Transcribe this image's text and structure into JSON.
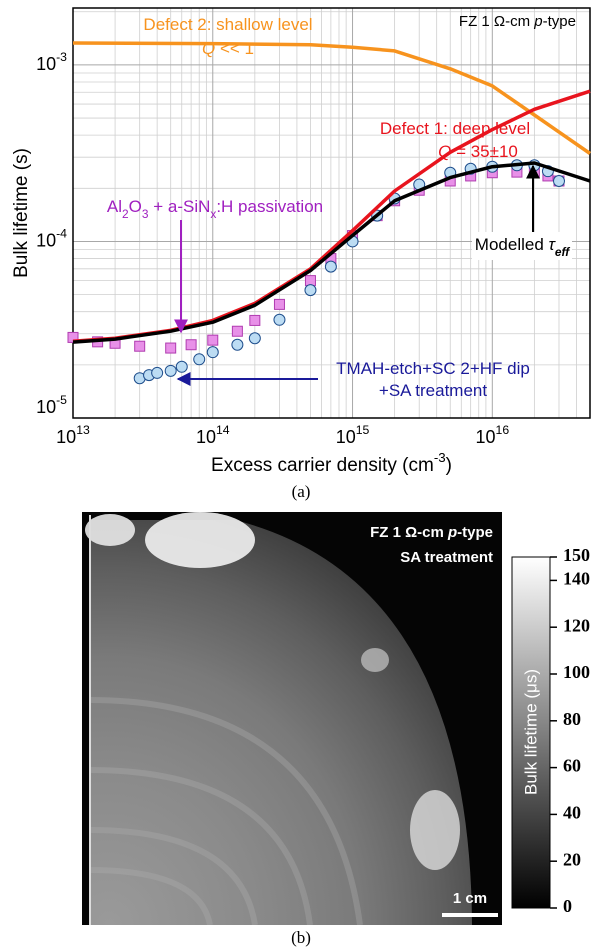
{
  "chart_data": [
    {
      "type": "line",
      "xlabel": [
        [
          "Excess carrier density (cm",
          null
        ],
        [
          "-3",
          "sup"
        ],
        [
          ")",
          null
        ]
      ],
      "ylabel": [
        [
          "Bulk lifetime (s)",
          null
        ]
      ],
      "panel_label": "(a)",
      "xlog": true,
      "ylog": true,
      "grid": true,
      "xlim": [
        10000000000000.0,
        5e+16
      ],
      "ylim": [
        1e-05,
        0.0021
      ],
      "xticks": [
        {
          "value": 10000000000000.0,
          "label": "10",
          "exponent": "13"
        },
        {
          "value": 100000000000000.0,
          "label": "10",
          "exponent": "14"
        },
        {
          "value": 1000000000000000.0,
          "label": "10",
          "exponent": "15"
        },
        {
          "value": 1e+16,
          "label": "10",
          "exponent": "16"
        }
      ],
      "yticks": [
        {
          "value": 1e-05,
          "label": "10",
          "exponent": "-5"
        },
        {
          "value": 0.0001,
          "label": "10",
          "exponent": "-4"
        },
        {
          "value": 0.001,
          "label": "10",
          "exponent": "-3"
        }
      ],
      "xminor": [
        20000000000000.0,
        30000000000000.0,
        40000000000000.0,
        50000000000000.0,
        60000000000000.0,
        70000000000000.0,
        80000000000000.0,
        90000000000000.0,
        200000000000000.0,
        300000000000000.0,
        400000000000000.0,
        500000000000000.0,
        600000000000000.0,
        700000000000000.0,
        800000000000000.0,
        900000000000000.0,
        2000000000000000.0,
        3000000000000000.0,
        4000000000000000.0,
        5000000000000000.0,
        6000000000000000.0,
        7000000000000000.0,
        8000000000000000.0,
        9000000000000000.0,
        2e+16,
        3e+16,
        4e+16,
        5e+16
      ],
      "yminor": [
        2e-05,
        3e-05,
        4e-05,
        5e-05,
        6e-05,
        7e-05,
        8e-05,
        9e-05,
        0.0002,
        0.0003,
        0.0004,
        0.0005,
        0.0006,
        0.0007,
        0.0008,
        0.0009,
        0.002
      ],
      "series": [
        {
          "name": "Al2O3 + a-SiNx:H passivation",
          "marker": "square",
          "color": "#b03cb0",
          "fill": "#e890e8",
          "x": [
            10000000000000.0,
            15000000000000.0,
            20000000000000.0,
            30000000000000.0,
            50000000000000.0,
            70000000000000.0,
            100000000000000.0,
            150000000000000.0,
            200000000000000.0,
            300000000000000.0,
            500000000000000.0,
            700000000000000.0,
            1000000000000000.0,
            1500000000000000.0,
            2000000000000000.0,
            3000000000000000.0,
            5000000000000000.0,
            7000000000000000.0,
            1e+16,
            1.5e+16,
            2e+16,
            2.5e+16,
            3e+16
          ],
          "values": [
            2.86e-05,
            2.7e-05,
            2.65e-05,
            2.55e-05,
            2.49e-05,
            2.6e-05,
            2.76e-05,
            3.1e-05,
            3.57e-05,
            4.4e-05,
            6e-05,
            8e-05,
            0.000108,
            0.00014,
            0.00017,
            0.000195,
            0.00022,
            0.000235,
            0.000245,
            0.000247,
            0.000245,
            0.000235,
            0.00022
          ]
        },
        {
          "name": "TMAH-etch+SC 2+HF dip +SA treatment",
          "marker": "circle",
          "color": "#1f4e8c",
          "fill": "#bcdcf3",
          "x": [
            30000000000000.0,
            35000000000000.0,
            40000000000000.0,
            50000000000000.0,
            60000000000000.0,
            80000000000000.0,
            100000000000000.0,
            150000000000000.0,
            200000000000000.0,
            300000000000000.0,
            500000000000000.0,
            700000000000000.0,
            1000000000000000.0,
            1500000000000000.0,
            2000000000000000.0,
            3000000000000000.0,
            5000000000000000.0,
            7000000000000000.0,
            1e+16,
            1.5e+16,
            2e+16,
            2.5e+16,
            3e+16
          ],
          "values": [
            1.68e-05,
            1.75e-05,
            1.8e-05,
            1.85e-05,
            1.95e-05,
            2.15e-05,
            2.36e-05,
            2.6e-05,
            2.83e-05,
            3.6e-05,
            5.3e-05,
            7.2e-05,
            0.0001,
            0.00014,
            0.000175,
            0.00021,
            0.000245,
            0.000258,
            0.000265,
            0.00027,
            0.00027,
            0.00025,
            0.00022
          ]
        },
        {
          "name": "Defect 2: shallow level",
          "marker": null,
          "color": "#f7931e",
          "x": [
            10000000000000.0,
            100000000000000.0,
            500000000000000.0,
            1000000000000000.0,
            2000000000000000.0,
            5000000000000000.0,
            1e+16,
            2e+16,
            5e+16
          ],
          "values": [
            0.00133,
            0.00132,
            0.0013,
            0.00126,
            0.0012,
            0.00095,
            0.00076,
            0.00052,
            0.000315
          ]
        },
        {
          "name": "Defect 1: deep level",
          "marker": null,
          "color": "#e8141e",
          "x": [
            10000000000000.0,
            20000000000000.0,
            50000000000000.0,
            100000000000000.0,
            200000000000000.0,
            500000000000000.0,
            1000000000000000.0,
            2000000000000000.0,
            5000000000000000.0,
            1e+16,
            2e+16,
            5e+16
          ],
          "values": [
            2.72e-05,
            2.83e-05,
            3.14e-05,
            3.57e-05,
            4.46e-05,
            7e-05,
            0.000115,
            0.000193,
            0.00032,
            0.00043,
            0.00056,
            0.00071
          ]
        },
        {
          "name": "Modelled",
          "marker": null,
          "color": "#000000",
          "x": [
            10000000000000.0,
            20000000000000.0,
            50000000000000.0,
            100000000000000.0,
            200000000000000.0,
            500000000000000.0,
            1000000000000000.0,
            2000000000000000.0,
            5000000000000000.0,
            1e+16,
            2e+16,
            5e+16
          ],
          "values": [
            2.69e-05,
            2.8e-05,
            3.1e-05,
            3.49e-05,
            4.35e-05,
            6.85e-05,
            0.000108,
            0.00017,
            0.00023,
            0.000265,
            0.000278,
            0.00022
          ]
        }
      ],
      "annotations": [
        {
          "text": [
            [
              "FZ 1 Ω-cm ",
              null
            ],
            [
              "p",
              "i"
            ],
            [
              "-type",
              null
            ]
          ],
          "color": "#000000"
        },
        {
          "text": [
            [
              "Defect 2: shallow level",
              null
            ]
          ],
          "color": "#f7931e"
        },
        {
          "text": [
            [
              "Q",
              "i"
            ],
            [
              " << 1",
              null
            ]
          ],
          "color": "#f7931e"
        },
        {
          "text": [
            [
              "Defect 1: deep level",
              null
            ]
          ],
          "color": "#e8141e"
        },
        {
          "text": [
            [
              "Q",
              "i"
            ],
            [
              " = 35±10",
              null
            ]
          ],
          "color": "#e8141e"
        },
        {
          "text": [
            [
              "Al",
              null
            ],
            [
              "2",
              "sub"
            ],
            [
              "O",
              null
            ],
            [
              "3",
              "sub"
            ],
            [
              " + a-SiN",
              null
            ],
            [
              "x",
              "sub"
            ],
            [
              ":H passivation",
              null
            ]
          ],
          "color": "#a020c0"
        },
        {
          "text": [
            [
              "Modelled ",
              null
            ],
            [
              "τ",
              "i"
            ],
            [
              "eff",
              "subi"
            ]
          ],
          "color": "#000000"
        },
        {
          "text": [
            [
              "TMAH-etch+SC 2+HF dip",
              null
            ]
          ],
          "color": "#1a1a9a"
        },
        {
          "text": [
            [
              "+SA treatment",
              null
            ]
          ],
          "color": "#1a1a9a"
        }
      ]
    },
    {
      "type": "image",
      "annotations": [
        {
          "text": [
            [
              "FZ 1 Ω-cm ",
              null
            ],
            [
              "p",
              "bi"
            ],
            [
              "-type",
              null
            ]
          ],
          "color": "#ffffff"
        },
        {
          "text": [
            [
              "SA treatment",
              null
            ]
          ],
          "color": "#ffffff"
        },
        {
          "text": [
            [
              "1 cm",
              null
            ]
          ],
          "color": "#ffffff"
        }
      ],
      "panel_label": "(b)",
      "colorbar": {
        "label": "Bulk lifetime (μs)",
        "ylim": [
          0,
          150
        ],
        "yticks": [
          0,
          20,
          40,
          60,
          80,
          100,
          120,
          140,
          150
        ]
      }
    }
  ]
}
